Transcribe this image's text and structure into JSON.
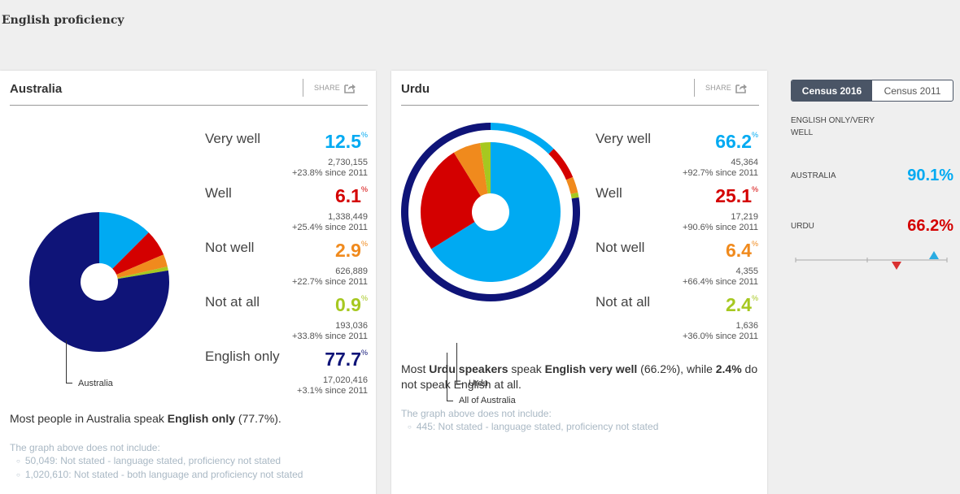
{
  "page": {
    "title": "English proficiency"
  },
  "colors": {
    "very_well": "#00aaf2",
    "well": "#d40000",
    "not_well": "#f08a1d",
    "not_at_all": "#a6c820",
    "english_only": "#0f1478",
    "sidebar_dark": "#4a5566"
  },
  "australia_card": {
    "title": "Australia",
    "share_label": "SHARE",
    "pie_label": "Australia",
    "stats": [
      {
        "label": "Very well",
        "pct": "12.5",
        "count": "2,730,155",
        "change": "+23.8% since 2011"
      },
      {
        "label": "Well",
        "pct": "6.1",
        "count": "1,338,449",
        "change": "+25.4% since 2011"
      },
      {
        "label": "Not well",
        "pct": "2.9",
        "count": "626,889",
        "change": "+22.7% since 2011"
      },
      {
        "label": "Not at all",
        "pct": "0.9",
        "count": "193,036",
        "change": "+33.8% since 2011"
      },
      {
        "label": "English only",
        "pct": "77.7",
        "count": "17,020,416",
        "change": "+3.1% since 2011"
      }
    ],
    "pct_sign": "%",
    "summary": {
      "pre": "Most people in Australia speak ",
      "bold": "English only",
      "post": " (77.7%)."
    },
    "footnote": {
      "heading": "The graph above does not include:",
      "items": [
        "50,049: Not stated - language stated, proficiency not stated",
        "1,020,610: Not stated - both language and proficiency not stated"
      ]
    }
  },
  "urdu_card": {
    "title": "Urdu",
    "share_label": "SHARE",
    "pie_label_inner": "Urdu",
    "pie_label_outer": "All of Australia",
    "stats": [
      {
        "label": "Very well",
        "pct": "66.2",
        "count": "45,364",
        "change": "+92.7% since 2011"
      },
      {
        "label": "Well",
        "pct": "25.1",
        "count": "17,219",
        "change": "+90.6% since 2011"
      },
      {
        "label": "Not well",
        "pct": "6.4",
        "count": "4,355",
        "change": "+66.4% since 2011"
      },
      {
        "label": "Not at all",
        "pct": "2.4",
        "count": "1,636",
        "change": "+36.0% since 2011"
      }
    ],
    "pct_sign": "%",
    "summary": {
      "t1": "Most ",
      "b1": "Urdu speakers",
      "t2": " speak ",
      "b2": "English very well",
      "t3": " (66.2%), while ",
      "b3": "2.4%",
      "t4": " do not speak English at all."
    },
    "footnote": {
      "heading": "The graph above does not include:",
      "items": [
        "445: Not stated - language stated, proficiency not stated"
      ]
    }
  },
  "sidebar": {
    "toggle": {
      "active": "Census 2016",
      "inactive": "Census 2011"
    },
    "metric_label": "ENGLISH ONLY/VERY WELL",
    "rows": [
      {
        "label": "AUSTRALIA",
        "value": "90.1%"
      },
      {
        "label": "URDU",
        "value": "66.2%"
      }
    ]
  },
  "chart_data": [
    {
      "type": "pie",
      "title": "Australia",
      "categories": [
        "Very well",
        "Well",
        "Not well",
        "Not at all",
        "English only"
      ],
      "values": [
        12.5,
        6.1,
        2.9,
        0.9,
        77.7
      ],
      "colors": [
        "#00aaf2",
        "#d40000",
        "#f08a1d",
        "#a6c820",
        "#0f1478"
      ],
      "labels": [
        "Australia"
      ]
    },
    {
      "type": "pie",
      "title": "Urdu",
      "series": [
        {
          "name": "Urdu",
          "categories": [
            "Very well",
            "Well",
            "Not well",
            "Not at all"
          ],
          "values": [
            66.2,
            25.1,
            6.4,
            2.4
          ]
        },
        {
          "name": "All of Australia",
          "categories": [
            "Very well",
            "Well",
            "Not well",
            "Not at all",
            "English only"
          ],
          "values": [
            12.5,
            6.1,
            2.9,
            0.9,
            77.7
          ]
        }
      ],
      "labels": [
        "Urdu",
        "All of Australia"
      ]
    },
    {
      "type": "scatter",
      "title": "English only/very well",
      "series": [
        {
          "name": "Australia",
          "values": [
            90.1
          ],
          "marker": "triangle-up",
          "color": "#00aaf2"
        },
        {
          "name": "Urdu",
          "values": [
            66.2
          ],
          "marker": "triangle-down",
          "color": "#d40000"
        }
      ]
    }
  ]
}
